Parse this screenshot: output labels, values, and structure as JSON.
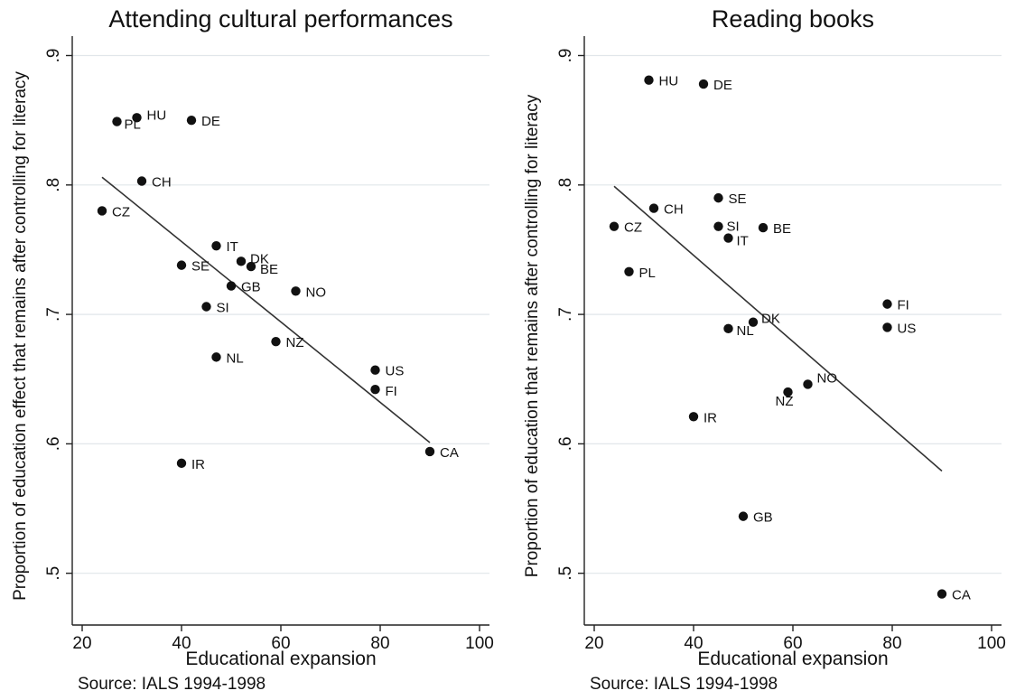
{
  "chart_data": [
    {
      "type": "scatter",
      "title": "Attending cultural performances",
      "xlabel": "Educational expansion",
      "ylabel": "Proportion of education effect that remains after controlling for literacy",
      "source": "Source: IALS 1994-1998",
      "xlim": [
        18,
        102
      ],
      "ylim": [
        0.46,
        0.915
      ],
      "xticks": [
        20,
        40,
        60,
        80,
        100
      ],
      "xtick_labels": [
        "20",
        "40",
        "60",
        "80",
        "100"
      ],
      "yticks": [
        0.5,
        0.6,
        0.7,
        0.8,
        0.9
      ],
      "ytick_labels": [
        ".5",
        ".6",
        ".7",
        ".8",
        ".9"
      ],
      "grid": true,
      "points": [
        {
          "label": "PL",
          "x": 27,
          "y": 0.849
        },
        {
          "label": "HU",
          "x": 31,
          "y": 0.852
        },
        {
          "label": "DE",
          "x": 42,
          "y": 0.85
        },
        {
          "label": "CH",
          "x": 32,
          "y": 0.803
        },
        {
          "label": "CZ",
          "x": 24,
          "y": 0.78
        },
        {
          "label": "IT",
          "x": 47,
          "y": 0.753
        },
        {
          "label": "DK",
          "x": 52,
          "y": 0.741
        },
        {
          "label": "BE",
          "x": 54,
          "y": 0.737
        },
        {
          "label": "SE",
          "x": 40,
          "y": 0.738
        },
        {
          "label": "GB",
          "x": 50,
          "y": 0.722
        },
        {
          "label": "NO",
          "x": 63,
          "y": 0.718
        },
        {
          "label": "SI",
          "x": 45,
          "y": 0.706
        },
        {
          "label": "NZ",
          "x": 59,
          "y": 0.679
        },
        {
          "label": "NL",
          "x": 47,
          "y": 0.667
        },
        {
          "label": "US",
          "x": 79,
          "y": 0.657
        },
        {
          "label": "FI",
          "x": 79,
          "y": 0.642
        },
        {
          "label": "CA",
          "x": 90,
          "y": 0.594
        },
        {
          "label": "IR",
          "x": 40,
          "y": 0.585
        }
      ],
      "fit_line": {
        "x": [
          24,
          90
        ],
        "y": [
          0.806,
          0.601
        ]
      }
    },
    {
      "type": "scatter",
      "title": "Reading books",
      "xlabel": "Educational expansion",
      "ylabel": "Proportion of education that remains after controlling for literacy",
      "source": "Source: IALS 1994-1998",
      "xlim": [
        18,
        102
      ],
      "ylim": [
        0.46,
        0.915
      ],
      "xticks": [
        20,
        40,
        60,
        80,
        100
      ],
      "xtick_labels": [
        "20",
        "40",
        "60",
        "80",
        "100"
      ],
      "yticks": [
        0.5,
        0.6,
        0.7,
        0.8,
        0.9
      ],
      "ytick_labels": [
        ".5",
        ".6",
        ".7",
        ".8",
        ".9"
      ],
      "grid": true,
      "points": [
        {
          "label": "HU",
          "x": 31,
          "y": 0.881
        },
        {
          "label": "DE",
          "x": 42,
          "y": 0.878
        },
        {
          "label": "SE",
          "x": 45,
          "y": 0.79
        },
        {
          "label": "CH",
          "x": 32,
          "y": 0.782
        },
        {
          "label": "CZ",
          "x": 24,
          "y": 0.768
        },
        {
          "label": "SI",
          "x": 45,
          "y": 0.768
        },
        {
          "label": "BE",
          "x": 54,
          "y": 0.767
        },
        {
          "label": "IT",
          "x": 47,
          "y": 0.759
        },
        {
          "label": "PL",
          "x": 27,
          "y": 0.733
        },
        {
          "label": "FI",
          "x": 79,
          "y": 0.708
        },
        {
          "label": "DK",
          "x": 52,
          "y": 0.694
        },
        {
          "label": "US",
          "x": 79,
          "y": 0.69
        },
        {
          "label": "NL",
          "x": 47,
          "y": 0.689
        },
        {
          "label": "NO",
          "x": 63,
          "y": 0.646
        },
        {
          "label": "NZ",
          "x": 59,
          "y": 0.64
        },
        {
          "label": "IR",
          "x": 40,
          "y": 0.621
        },
        {
          "label": "GB",
          "x": 50,
          "y": 0.544
        },
        {
          "label": "CA",
          "x": 90,
          "y": 0.484
        }
      ],
      "fit_line": {
        "x": [
          24,
          90
        ],
        "y": [
          0.799,
          0.579
        ]
      }
    }
  ]
}
